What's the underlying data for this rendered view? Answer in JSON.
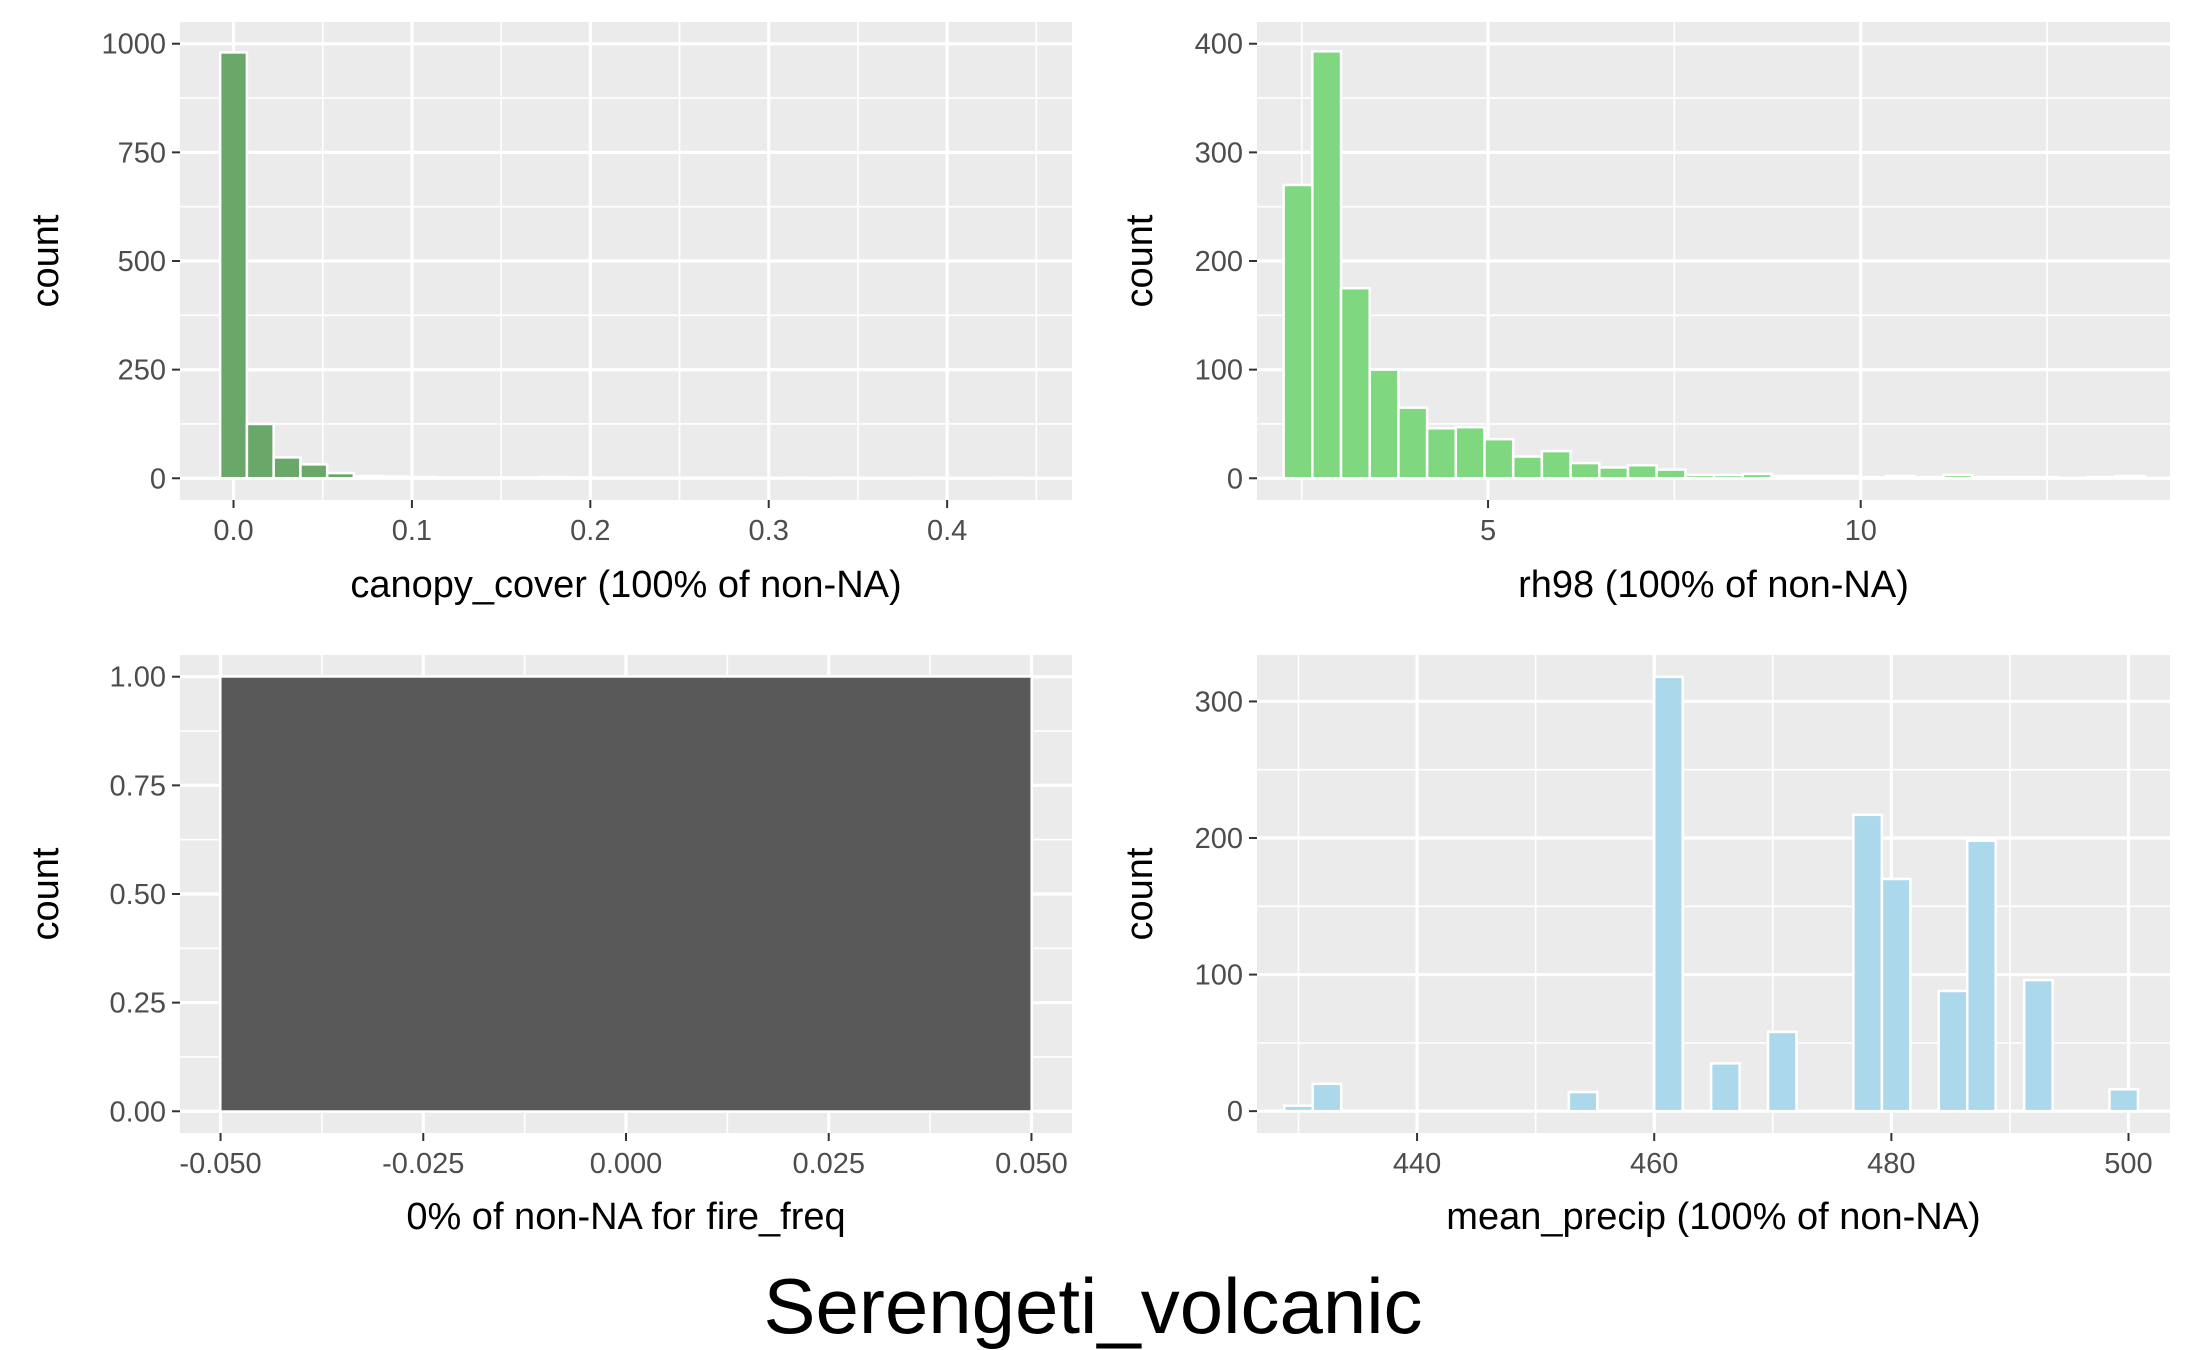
{
  "figure": {
    "title": "Serengeti_volcanic"
  },
  "chart_data": [
    {
      "type": "bar",
      "panel": "top-left",
      "xlabel": "canopy_cover (100% of non-NA)",
      "ylabel": "count",
      "fill_color": "#6aa86a",
      "xlim": [
        -0.03,
        0.47
      ],
      "ylim": [
        -50,
        1050
      ],
      "x_ticks": [
        0.0,
        0.1,
        0.2,
        0.3,
        0.4
      ],
      "x_tick_labels": [
        "0.0",
        "0.1",
        "0.2",
        "0.3",
        "0.4"
      ],
      "y_ticks": [
        0,
        250,
        500,
        750,
        1000
      ],
      "y_tick_labels": [
        "0",
        "250",
        "500",
        "750",
        "1000"
      ],
      "bin_width": 0.015,
      "bins_x": [
        0.0,
        0.015,
        0.03,
        0.045,
        0.06,
        0.075,
        0.09,
        0.105,
        0.12,
        0.135,
        0.15,
        0.165,
        0.18,
        0.195,
        0.21,
        0.225,
        0.24,
        0.255,
        0.27,
        0.285,
        0.3,
        0.315,
        0.33,
        0.345,
        0.36,
        0.375,
        0.39,
        0.405,
        0.42,
        0.435
      ],
      "values": [
        980,
        125,
        48,
        32,
        12,
        5,
        4,
        3,
        2,
        2,
        2,
        2,
        3,
        2,
        1,
        1,
        1,
        1,
        1,
        1,
        0,
        1,
        0,
        1,
        0,
        0,
        1,
        0,
        0,
        1
      ]
    },
    {
      "type": "bar",
      "panel": "top-right",
      "xlabel": "rh98 (100% of non-NA)",
      "ylabel": "count",
      "fill_color": "#7fd77f",
      "xlim": [
        1.9,
        14.15
      ],
      "ylim": [
        -20,
        420
      ],
      "x_ticks": [
        5,
        10
      ],
      "x_tick_labels": [
        "5",
        "10"
      ],
      "y_ticks": [
        0,
        100,
        200,
        300,
        400
      ],
      "y_tick_labels": [
        "0",
        "100",
        "200",
        "300",
        "400"
      ],
      "bin_width": 0.385,
      "bins_x": [
        2.45,
        2.835,
        3.22,
        3.605,
        3.99,
        4.375,
        4.76,
        5.145,
        5.53,
        5.915,
        6.3,
        6.685,
        7.07,
        7.455,
        7.84,
        8.225,
        8.61,
        8.995,
        9.38,
        9.765,
        10.15,
        10.535,
        10.92,
        11.305,
        11.69,
        12.075,
        12.46,
        12.845,
        13.23,
        13.615
      ],
      "values": [
        270,
        393,
        175,
        100,
        65,
        46,
        47,
        36,
        20,
        25,
        14,
        10,
        12,
        8,
        3,
        3,
        4,
        2,
        2,
        2,
        1,
        2,
        1,
        3,
        1,
        1,
        1,
        0,
        1,
        2
      ]
    },
    {
      "type": "bar",
      "panel": "bottom-left",
      "xlabel": "0% of non-NA for fire_freq",
      "ylabel": "count",
      "fill_color": "#595959",
      "xlim": [
        -0.055,
        0.055
      ],
      "ylim": [
        -0.05,
        1.05
      ],
      "x_ticks": [
        -0.05,
        -0.025,
        0.0,
        0.025,
        0.05
      ],
      "x_tick_labels": [
        "-0.050",
        "-0.025",
        "0.000",
        "0.025",
        "0.050"
      ],
      "y_ticks": [
        0.0,
        0.25,
        0.5,
        0.75,
        1.0
      ],
      "y_tick_labels": [
        "0.00",
        "0.25",
        "0.50",
        "0.75",
        "1.00"
      ],
      "bar": {
        "x_start": -0.05,
        "x_end": 0.05,
        "value": 1.0
      }
    },
    {
      "type": "bar",
      "panel": "bottom-right",
      "xlabel": "mean_precip (100% of non-NA)",
      "ylabel": "count",
      "fill_color": "#acd8ec",
      "xlim": [
        426.5,
        503.5
      ],
      "ylim": [
        -16,
        334
      ],
      "x_ticks": [
        440,
        460,
        480,
        500
      ],
      "x_tick_labels": [
        "440",
        "460",
        "480",
        "500"
      ],
      "y_ticks": [
        0,
        100,
        200,
        300
      ],
      "y_tick_labels": [
        "0",
        "100",
        "200",
        "300"
      ],
      "bin_width": 2.4,
      "bins_x": [
        430.0,
        432.4,
        434.8,
        437.2,
        439.6,
        442.0,
        444.4,
        446.8,
        449.2,
        451.6,
        454.0,
        456.4,
        458.8,
        461.2,
        463.6,
        466.0,
        468.4,
        470.8,
        473.2,
        475.6,
        478.0,
        480.4,
        482.8,
        485.2,
        487.6,
        490.0,
        492.4,
        494.8,
        497.2,
        499.6
      ],
      "values": [
        4,
        20,
        0,
        0,
        0,
        0,
        0,
        0,
        0,
        0,
        14,
        0,
        0,
        318,
        0,
        35,
        0,
        58,
        0,
        0,
        217,
        170,
        0,
        88,
        198,
        0,
        96,
        0,
        0,
        16
      ]
    }
  ]
}
